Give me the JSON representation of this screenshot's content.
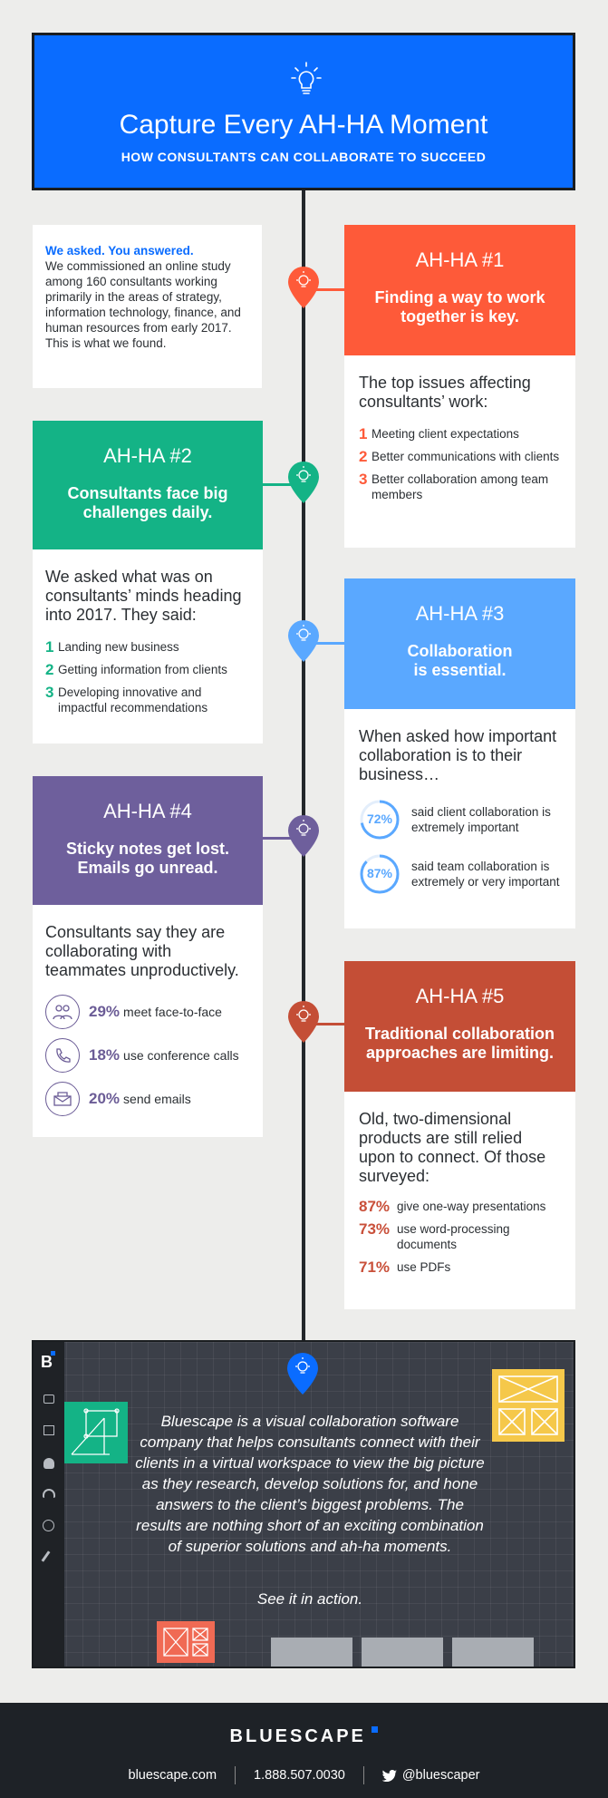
{
  "header": {
    "title": "Capture Every AH-HA Moment",
    "subtitle": "HOW CONSULTANTS CAN COLLABORATE TO SUCCEED",
    "icon": "lightbulb-icon"
  },
  "intro": {
    "lead": "We asked. You answered.",
    "body": "We commissioned an online study among 160 consultants working primarily in the areas of strategy, information technology, finance, and human resources from early 2017. This is what we found."
  },
  "ahha1": {
    "number": "AH-HA #1",
    "headline": "Finding a way to work together is key.",
    "color": "#fe5a39",
    "intro": "The top issues affecting consultants’ work:",
    "items": [
      {
        "n": "1",
        "text": "Meeting client expectations"
      },
      {
        "n": "2",
        "text": "Better communications with clients"
      },
      {
        "n": "3",
        "text": "Better collaboration among team members"
      }
    ]
  },
  "ahha2": {
    "number": "AH-HA #2",
    "headline": "Consultants face big challenges daily.",
    "color": "#14b386",
    "intro": "We asked what was on consultants’ minds heading into 2017. They said:",
    "items": [
      {
        "n": "1",
        "text": "Landing new business"
      },
      {
        "n": "2",
        "text": "Getting information from clients"
      },
      {
        "n": "3",
        "text": "Developing innovative and impactful recommendations"
      }
    ]
  },
  "ahha3": {
    "number": "AH-HA #3",
    "headline": "Collaboration is essential.",
    "color": "#5aa8ff",
    "intro": "When asked how important collaboration is to their business…",
    "stats": [
      {
        "pct": "72%",
        "value": 0.72,
        "text": "said client collaboration is extremely important"
      },
      {
        "pct": "87%",
        "value": 0.87,
        "text": "said team collaboration is extremely or very important"
      }
    ]
  },
  "ahha4": {
    "number": "AH-HA #4",
    "headline": "Sticky notes get lost. Emails go unread.",
    "color": "#6e5f9c",
    "intro": "Consultants say they are collaborating with teammates unproductively.",
    "stats": [
      {
        "pct": "29%",
        "text": "meet face-to-face",
        "icon": "people-icon"
      },
      {
        "pct": "18%",
        "text": "use conference calls",
        "icon": "phone-icon"
      },
      {
        "pct": "20%",
        "text": "send emails",
        "icon": "email-icon"
      }
    ]
  },
  "ahha5": {
    "number": "AH-HA #5",
    "headline": "Traditional collaboration approaches are limiting.",
    "color": "#c44e36",
    "intro": "Old, two-dimensional products are still relied upon to connect. Of those surveyed:",
    "stats": [
      {
        "pct": "87%",
        "text": "give one-way presentations"
      },
      {
        "pct": "73%",
        "text": "use word-processing documents"
      },
      {
        "pct": "71%",
        "text": "use PDFs"
      }
    ]
  },
  "promo": {
    "text": "Bluescape is a visual collaboration software company that helps consultants connect with their clients in a virtual workspace to view the big picture as they research, develop solutions for, and hone answers to the client’s biggest problems. The results are nothing short of an exciting combination of superior solutions and ah-ha moments.",
    "cta": "See it in action.",
    "logo_letter": "B"
  },
  "footer": {
    "brand": "BLUESCAPE",
    "website": "bluescape.com",
    "phone": "1.888.507.0030",
    "twitter": "@bluescaper"
  }
}
